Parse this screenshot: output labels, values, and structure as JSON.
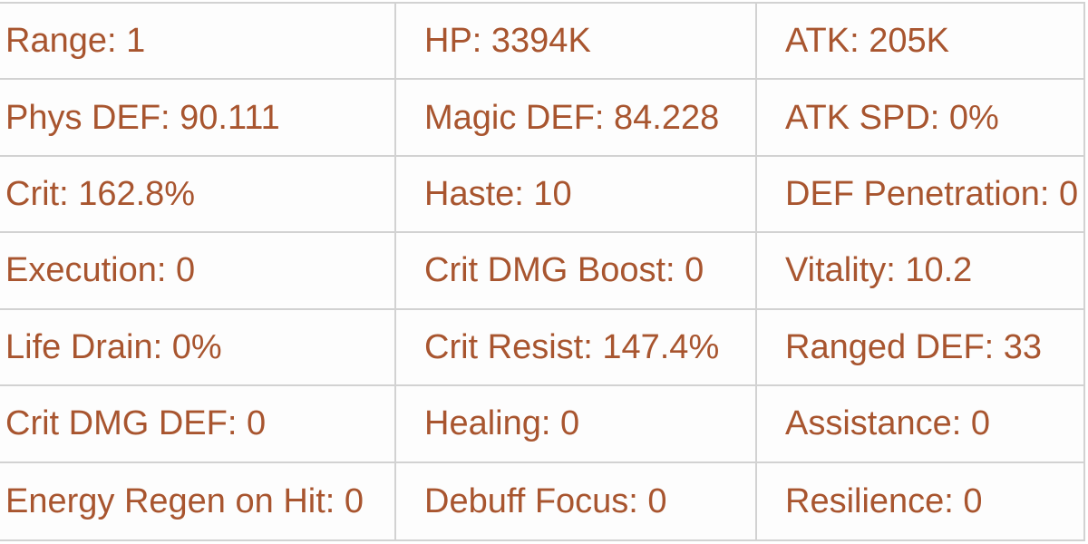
{
  "theme": {
    "text_color": "#a8552f",
    "border_color": "#d2d2d2",
    "cell_background": "#fdfdfd",
    "page_background": "#ffffff"
  },
  "stats_table": {
    "columns": 3,
    "rows": [
      [
        {
          "label": "Range",
          "value": "1",
          "text": "Range: 1"
        },
        {
          "label": "HP",
          "value": "3394K",
          "text": "HP: 3394K"
        },
        {
          "label": "ATK",
          "value": "205K",
          "text": "ATK: 205K"
        }
      ],
      [
        {
          "label": "Phys DEF",
          "value": "90.111",
          "text": "Phys DEF: 90.111"
        },
        {
          "label": "Magic DEF",
          "value": "84.228",
          "text": "Magic DEF: 84.228"
        },
        {
          "label": "ATK SPD",
          "value": "0%",
          "text": "ATK SPD: 0%"
        }
      ],
      [
        {
          "label": "Crit",
          "value": "162.8%",
          "text": "Crit: 162.8%"
        },
        {
          "label": "Haste",
          "value": "10",
          "text": "Haste: 10"
        },
        {
          "label": "DEF Penetration",
          "value": "0",
          "text": "DEF Penetration: 0"
        }
      ],
      [
        {
          "label": "Execution",
          "value": "0",
          "text": "Execution: 0"
        },
        {
          "label": "Crit DMG Boost",
          "value": "0",
          "text": "Crit DMG Boost: 0"
        },
        {
          "label": "Vitality",
          "value": "10.2",
          "text": "Vitality: 10.2"
        }
      ],
      [
        {
          "label": "Life Drain",
          "value": "0%",
          "text": "Life Drain: 0%"
        },
        {
          "label": "Crit Resist",
          "value": "147.4%",
          "text": "Crit Resist: 147.4%"
        },
        {
          "label": "Ranged DEF",
          "value": "33",
          "text": "Ranged DEF: 33"
        }
      ],
      [
        {
          "label": "Crit DMG DEF",
          "value": "0",
          "text": "Crit DMG DEF: 0"
        },
        {
          "label": "Healing",
          "value": "0",
          "text": "Healing: 0"
        },
        {
          "label": "Assistance",
          "value": "0",
          "text": "Assistance: 0"
        }
      ],
      [
        {
          "label": "Energy Regen on Hit",
          "value": "0",
          "text": "Energy Regen on Hit: 0"
        },
        {
          "label": "Debuff Focus",
          "value": "0",
          "text": "Debuff Focus: 0"
        },
        {
          "label": "Resilience",
          "value": "0",
          "text": "Resilience: 0"
        }
      ]
    ]
  }
}
